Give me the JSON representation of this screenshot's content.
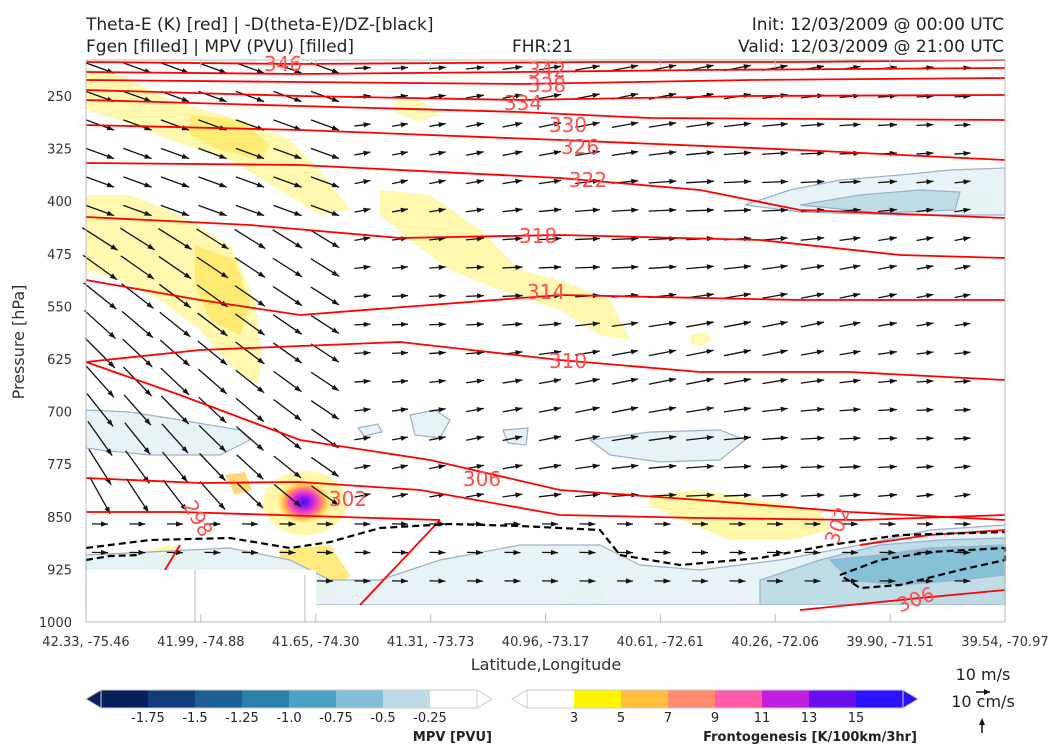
{
  "header": {
    "title_left_1": "Theta-E (K) [red] | -D(theta-E)/DZ-[black]",
    "title_left_2": "Fgen [filled] | MPV (PVU) [filled]",
    "fhr": "FHR:21",
    "init": "Init: 12/03/2009 @ 00:00 UTC",
    "valid": "Valid: 12/03/2009 @ 21:00 UTC"
  },
  "chart_data": {
    "type": "cross-section",
    "ylabel": "Pressure [hPa]",
    "xlabel": "Latitude,Longitude",
    "y_ticks": [
      "250",
      "325",
      "400",
      "475",
      "550",
      "625",
      "700",
      "775",
      "850",
      "925",
      "1000"
    ],
    "x_ticks": [
      "42.33, -75.46",
      "41.99, -74.88",
      "41.65, -74.30",
      "41.31, -73.73",
      "40.96, -73.17",
      "40.61, -72.61",
      "40.26, -72.06",
      "39.90, -71.51",
      "39.54, -70.97"
    ],
    "ylim": [
      1000,
      190
    ],
    "theta_e_contours": [
      {
        "label": "346",
        "level": 346
      },
      {
        "label": "342",
        "level": 342
      },
      {
        "label": "338",
        "level": 338
      },
      {
        "label": "334",
        "level": 334
      },
      {
        "label": "330",
        "level": 330
      },
      {
        "label": "326",
        "level": 326
      },
      {
        "label": "322",
        "level": 322
      },
      {
        "label": "318",
        "level": 318
      },
      {
        "label": "314",
        "level": 314
      },
      {
        "label": "310",
        "level": 310
      },
      {
        "label": "306",
        "level": 306
      },
      {
        "label": "302",
        "level": 302
      },
      {
        "label": "298",
        "level": 298
      },
      {
        "label": "302",
        "level": 302
      },
      {
        "label": "306",
        "level": 306
      }
    ],
    "mpv_colorbar": {
      "title": "MPV [PVU]",
      "ticks": [
        "-1.75",
        "-1.5",
        "-1.25",
        "-1.0",
        "-0.75",
        "-0.5",
        "-0.25"
      ],
      "colors": [
        "#08205c",
        "#123d7a",
        "#1d5f92",
        "#2a80aa",
        "#4aa3c6",
        "#83bfd6",
        "#bcdbe6",
        "#ffffff"
      ]
    },
    "fgen_colorbar": {
      "title": "Frontogenesis [K/100km/3hr]",
      "ticks": [
        "3",
        "5",
        "7",
        "9",
        "11",
        "13",
        "15"
      ],
      "colors": [
        "#ffffff",
        "#fff700",
        "#ffbf3c",
        "#ff8c6e",
        "#ff5aa8",
        "#c01ee0",
        "#6a10ee",
        "#2a12ff"
      ]
    },
    "vector_key": {
      "u_label": "10 m/s",
      "w_label": "10 cm/s"
    },
    "theta_e_color": "#ff0000",
    "static_stability_color": "#000000"
  }
}
